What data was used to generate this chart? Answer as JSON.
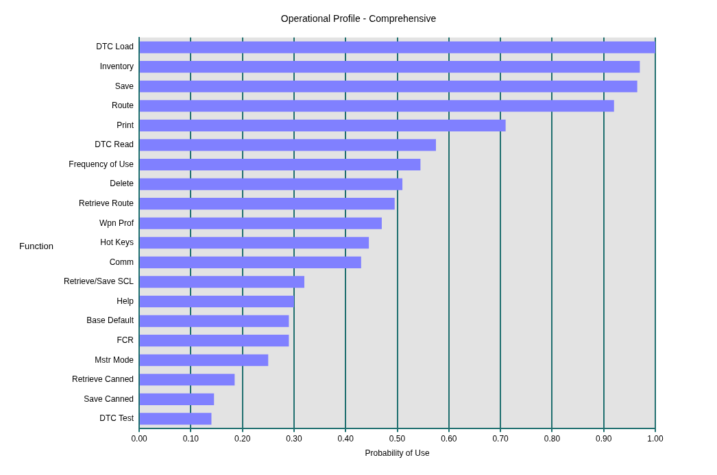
{
  "chart_data": {
    "type": "bar",
    "orientation": "horizontal",
    "title": "Operational Profile - Comprehensive",
    "xlabel": "Probability of Use",
    "ylabel": "Function",
    "categories": [
      "DTC Load",
      "Inventory",
      "Save",
      "Route",
      "Print",
      "DTC Read",
      "Frequency of Use",
      "Delete",
      "Retrieve Route",
      "Wpn Prof",
      "Hot Keys",
      "Comm",
      "Retrieve/Save SCL",
      "Help",
      "Base Default",
      "FCR",
      "Mstr Mode",
      "Retrieve Canned",
      "Save Canned",
      "DTC Test"
    ],
    "values": [
      1.0,
      0.97,
      0.965,
      0.92,
      0.71,
      0.575,
      0.545,
      0.51,
      0.495,
      0.47,
      0.445,
      0.43,
      0.32,
      0.3,
      0.29,
      0.29,
      0.25,
      0.185,
      0.145,
      0.14
    ],
    "color": "#8080ff",
    "xlim": [
      0,
      1
    ],
    "xticks": [
      {
        "value": 0,
        "label": "0.00"
      },
      {
        "value": 0.1,
        "label": "0.10"
      },
      {
        "value": 0.2,
        "label": "0.20"
      },
      {
        "value": 0.3,
        "label": "0.30"
      },
      {
        "value": 0.4,
        "label": "0.40"
      },
      {
        "value": 0.5,
        "label": "0.50"
      },
      {
        "value": 0.6,
        "label": "0.60"
      },
      {
        "value": 0.7,
        "label": "0.70"
      },
      {
        "value": 0.8,
        "label": "0.80"
      },
      {
        "value": 0.9,
        "label": "0.90"
      },
      {
        "value": 1,
        "label": "1.00"
      }
    ],
    "grid": "x"
  }
}
